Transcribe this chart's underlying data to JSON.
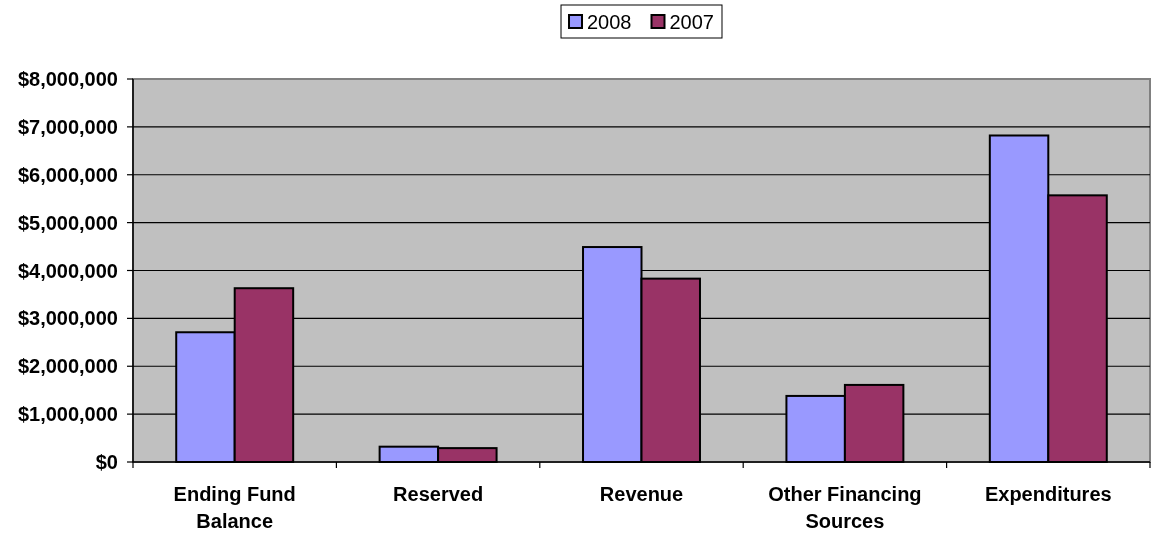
{
  "chart_data": {
    "type": "bar",
    "categories": [
      "Ending Fund Balance",
      "Reserved",
      "Revenue",
      "Other Financing Sources",
      "Expenditures"
    ],
    "series": [
      {
        "name": "2008",
        "color": "#9999ff",
        "values": [
          2710000,
          320000,
          4490000,
          1380000,
          6820000
        ]
      },
      {
        "name": "2007",
        "color": "#993366",
        "values": [
          3630000,
          290000,
          3830000,
          1610000,
          5570000
        ]
      }
    ],
    "ylim": [
      0,
      8000000
    ],
    "yticks": [
      {
        "value": 0,
        "label": "$0"
      },
      {
        "value": 1000000,
        "label": "$1,000,000"
      },
      {
        "value": 2000000,
        "label": "$2,000,000"
      },
      {
        "value": 3000000,
        "label": "$3,000,000"
      },
      {
        "value": 4000000,
        "label": "$4,000,000"
      },
      {
        "value": 5000000,
        "label": "$5,000,000"
      },
      {
        "value": 6000000,
        "label": "$6,000,000"
      },
      {
        "value": 7000000,
        "label": "$7,000,000"
      },
      {
        "value": 8000000,
        "label": "$8,000,000"
      }
    ],
    "grid": "y",
    "legend": "top"
  }
}
